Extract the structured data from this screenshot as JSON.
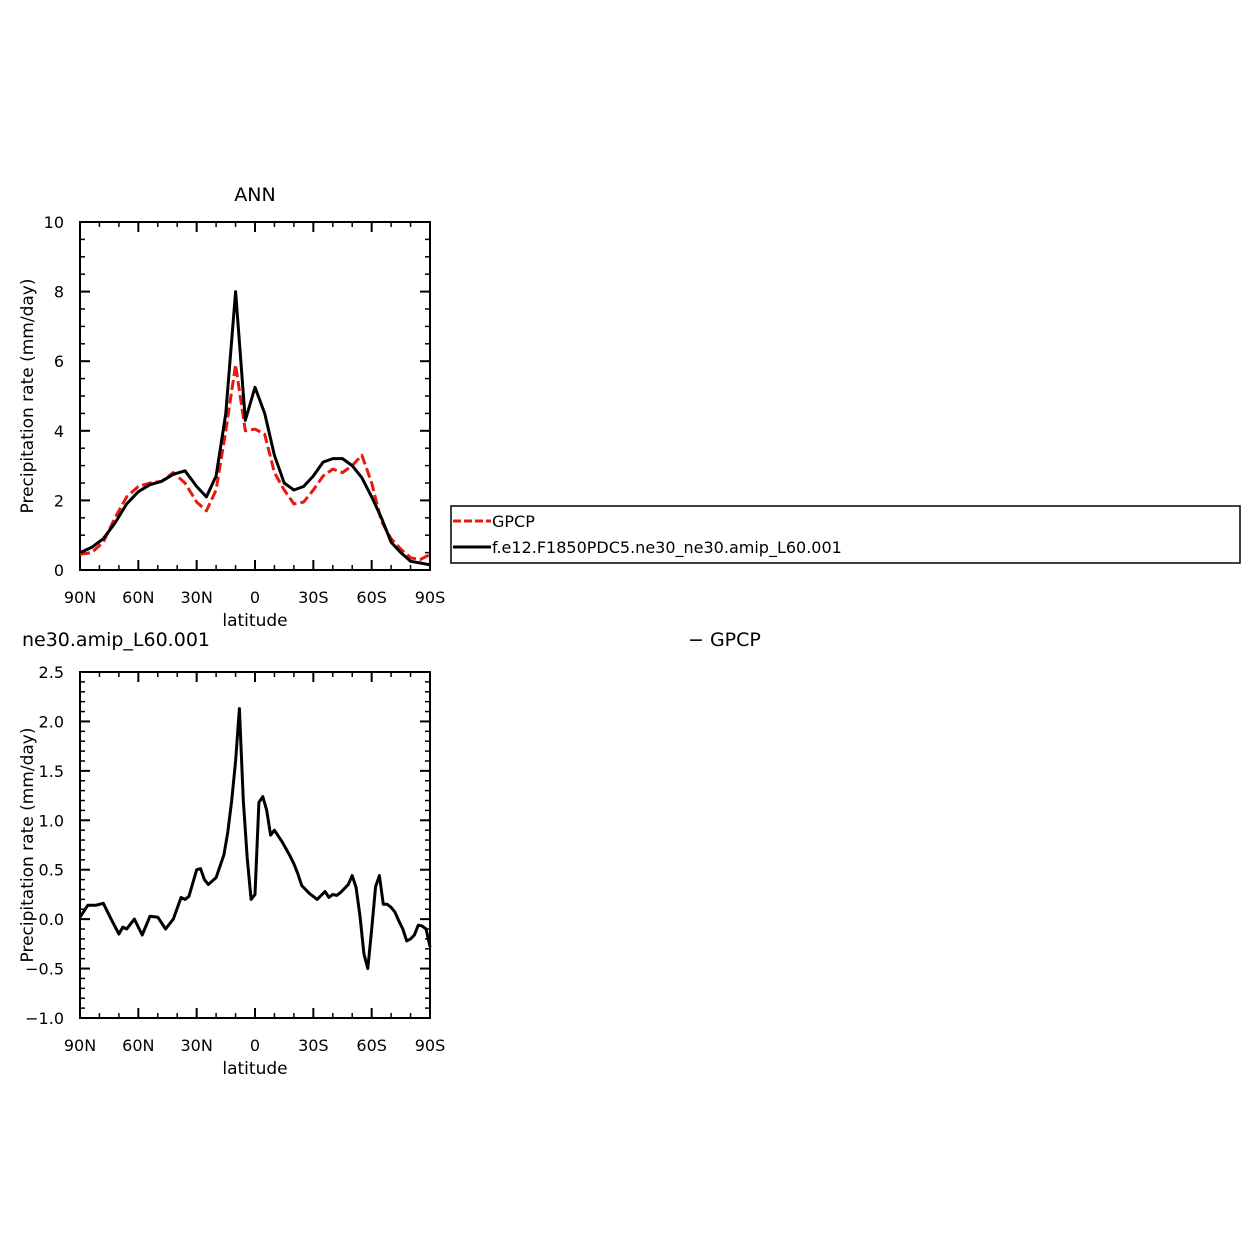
{
  "chart_data": [
    {
      "type": "line",
      "title": "ANN",
      "xlabel": "latitude",
      "ylabel": "Precipitation rate (mm/day)",
      "xlim": [
        90,
        -90
      ],
      "ylim": [
        0,
        10
      ],
      "x_tick_values": [
        90,
        60,
        30,
        0,
        -30,
        -60,
        -90
      ],
      "x_tick_labels": [
        "90N",
        "60N",
        "30N",
        "0",
        "30S",
        "60S",
        "90S"
      ],
      "y_tick_values": [
        0,
        2,
        4,
        6,
        8,
        10
      ],
      "y_tick_labels": [
        "0",
        "2",
        "4",
        "6",
        "8",
        "10"
      ],
      "grid": false,
      "legend_position": "right-outside",
      "x": [
        90,
        84,
        78,
        72,
        66,
        60,
        54,
        48,
        42,
        36,
        30,
        25,
        20,
        15,
        10,
        5,
        0,
        -5,
        -10,
        -15,
        -20,
        -25,
        -30,
        -35,
        -40,
        -45,
        -50,
        -55,
        -60,
        -65,
        -70,
        -75,
        -80,
        -85,
        -90
      ],
      "series": [
        {
          "name": "GPCP",
          "color": "#e8190f",
          "dash": true,
          "values": [
            0.45,
            0.5,
            0.8,
            1.5,
            2.1,
            2.4,
            2.5,
            2.55,
            2.8,
            2.5,
            1.95,
            1.7,
            2.3,
            4.0,
            5.9,
            4.0,
            4.05,
            3.9,
            2.8,
            2.3,
            1.9,
            1.95,
            2.3,
            2.7,
            2.9,
            2.8,
            3.0,
            3.3,
            2.5,
            1.4,
            0.9,
            0.6,
            0.35,
            0.3,
            0.45
          ]
        },
        {
          "name": "f.e12.F1850PDC5.ne30_ne30.amip_L60.001",
          "color": "#000000",
          "dash": false,
          "values": [
            0.5,
            0.65,
            0.9,
            1.35,
            1.9,
            2.25,
            2.45,
            2.55,
            2.75,
            2.85,
            2.4,
            2.1,
            2.7,
            4.5,
            8.0,
            4.3,
            5.25,
            4.5,
            3.3,
            2.5,
            2.3,
            2.4,
            2.7,
            3.1,
            3.2,
            3.2,
            3.0,
            2.65,
            2.1,
            1.5,
            0.8,
            0.5,
            0.25,
            0.2,
            0.15
          ]
        }
      ]
    },
    {
      "type": "line",
      "title": "ne30.amip_L60.001",
      "title_right": "− GPCP",
      "xlabel": "latitude",
      "ylabel": "Precipitation rate (mm/day)",
      "xlim": [
        90,
        -90
      ],
      "ylim": [
        -1.0,
        2.5
      ],
      "x_tick_values": [
        90,
        60,
        30,
        0,
        -30,
        -60,
        -90
      ],
      "x_tick_labels": [
        "90N",
        "60N",
        "30N",
        "0",
        "30S",
        "60S",
        "90S"
      ],
      "y_tick_values": [
        -1.0,
        -0.5,
        0.0,
        0.5,
        1.0,
        1.5,
        2.0,
        2.5
      ],
      "y_tick_labels": [
        "−1.0",
        "−0.5",
        "0.0",
        "0.5",
        "1.0",
        "1.5",
        "2.0",
        "2.5"
      ],
      "grid": false,
      "x": [
        90,
        86,
        82,
        78,
        74,
        70,
        68,
        66,
        62,
        58,
        54,
        50,
        46,
        42,
        38,
        36,
        34,
        30,
        28,
        26,
        24,
        20,
        16,
        14,
        12,
        10,
        8,
        6,
        4,
        2,
        0,
        -2,
        -4,
        -6,
        -8,
        -10,
        -12,
        -14,
        -18,
        -20,
        -22,
        -24,
        -28,
        -32,
        -36,
        -38,
        -40,
        -42,
        -44,
        -48,
        -50,
        -52,
        -54,
        -56,
        -58,
        -60,
        -62,
        -64,
        -66,
        -68,
        -70,
        -72,
        -74,
        -76,
        -78,
        -80,
        -82,
        -84,
        -86,
        -88,
        -90
      ],
      "series": [
        {
          "name": "",
          "color": "#000000",
          "dash": false,
          "values": [
            0.02,
            0.14,
            0.14,
            0.16,
            0.0,
            -0.15,
            -0.08,
            -0.1,
            0.0,
            -0.16,
            0.03,
            0.02,
            -0.1,
            0.0,
            0.22,
            0.2,
            0.23,
            0.5,
            0.51,
            0.4,
            0.35,
            0.42,
            0.65,
            0.88,
            1.2,
            1.6,
            2.13,
            1.2,
            0.62,
            0.2,
            0.25,
            1.18,
            1.24,
            1.1,
            0.85,
            0.9,
            0.84,
            0.78,
            0.64,
            0.56,
            0.46,
            0.34,
            0.26,
            0.2,
            0.28,
            0.22,
            0.25,
            0.24,
            0.27,
            0.35,
            0.44,
            0.32,
            0.03,
            -0.35,
            -0.5,
            -0.1,
            0.33,
            0.44,
            0.15,
            0.15,
            0.12,
            0.07,
            -0.02,
            -0.1,
            -0.22,
            -0.2,
            -0.16,
            -0.06,
            -0.07,
            -0.1,
            -0.28
          ]
        }
      ]
    }
  ]
}
